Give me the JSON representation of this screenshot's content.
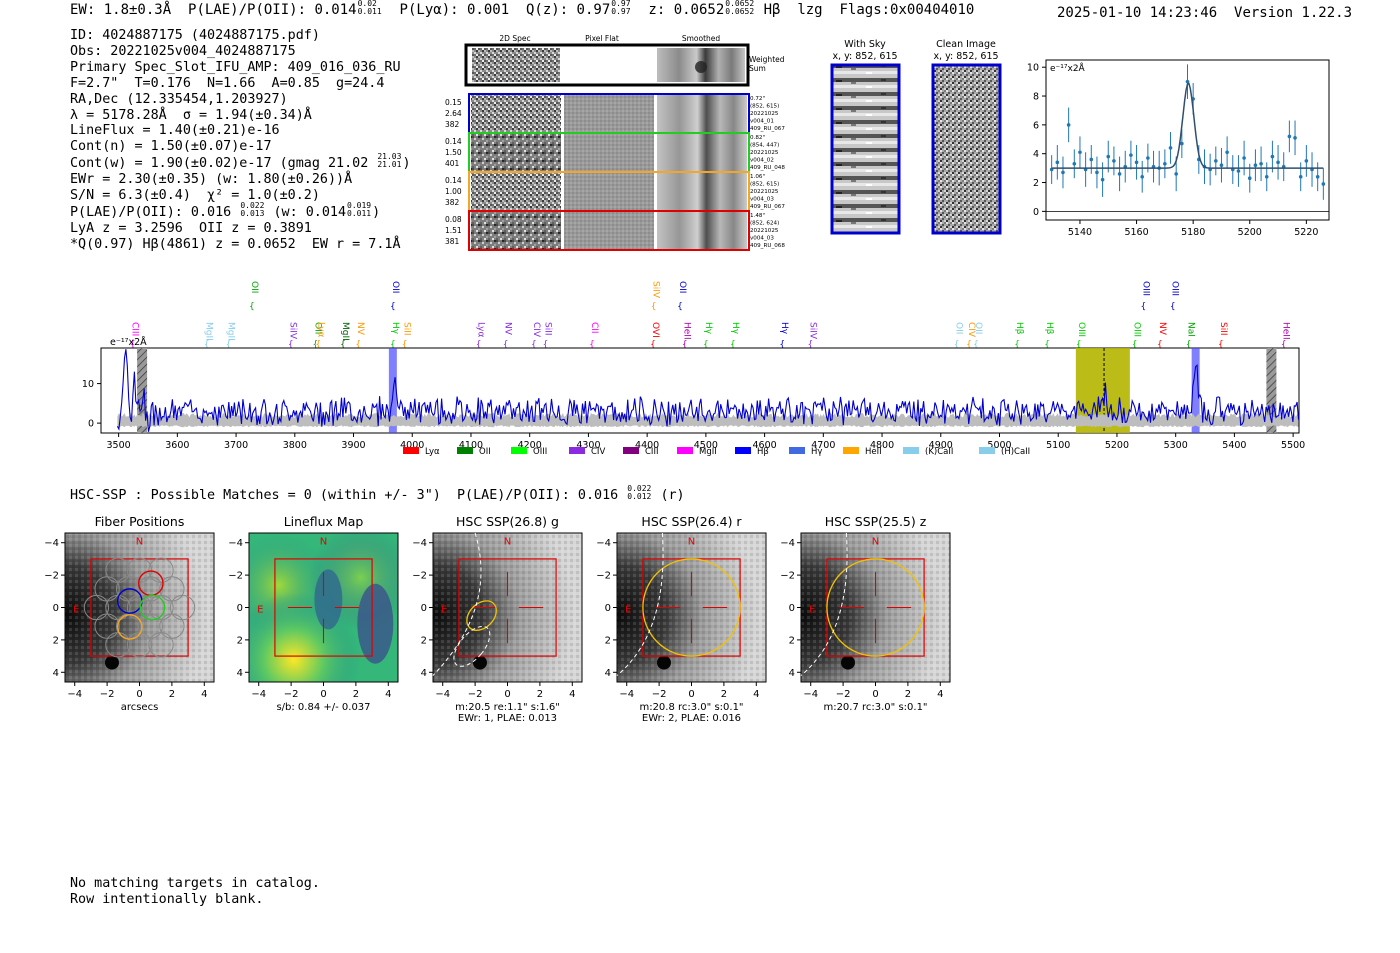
{
  "header": {
    "ew": "EW: 1.8±0.3Å",
    "plae_label": "P(LAE)/P(OII): 0.014",
    "plae_hi": "0.02",
    "plae_lo": "0.011",
    "plya": "P(Lyα): 0.001",
    "q_label": "Q(z): 0.97",
    "q_hi": "0.97",
    "q_lo": "0.97",
    "z_label": "z: 0.0652",
    "z_hi": "0.0652",
    "z_lo": "0.0652",
    "line": "Hβ",
    "lzg": "lzg",
    "flags": "Flags:0x00404010",
    "timestamp": "2025-01-10 14:23:46",
    "version": "Version 1.22.3"
  },
  "info": {
    "id": "ID: 4024887175 (4024887175.pdf)",
    "obs": "Obs: 20221025v004_4024887175",
    "primary": "Primary Spec_Slot_IFU_AMP: 409_016_036_RU",
    "fparams": "F=2.7\"  T=0.176  N=1.66  A=0.85  g=24.4",
    "radec": "RA,Dec (12.335454,1.203927)",
    "lambda": "λ = 5178.28Å  σ = 1.94(±0.34)Å",
    "lineflux": "LineFlux = 1.40(±0.21)e-16",
    "contn": "Cont(n) = 1.50(±0.07)e-17",
    "contw": "Cont(w) = 1.90(±0.02)e-17 (gmag 21.02",
    "gmag_hi": "21.03",
    "gmag_lo": "21.01",
    "contw_end": ")",
    "ewr": "EWr = 2.30(±0.35) (w: 1.80(±0.26))Å",
    "sn": "S/N = 6.3(±0.4)  χ² = 1.0(±0.2)",
    "plae": "P(LAE)/P(OII): 0.016",
    "plae_hi": "0.022",
    "plae_lo": "0.013",
    "plae_w": "(w: 0.014",
    "plae_w_hi": "0.019",
    "plae_w_lo": "0.011",
    "plae_w_end": ")",
    "lya": "LyA z = 3.2596  OII z = 0.3891",
    "best": "*Q(0.97) Hβ(4861) z = 0.0652  EW r = 7.1Å"
  },
  "spec2d": {
    "col_titles": [
      "2D Spec",
      "Pixel Flat",
      "Smoothed"
    ],
    "weighted": [
      "Weighted",
      "Sum"
    ],
    "rows": [
      {
        "vals": [
          "0.15",
          "2.64",
          "382"
        ],
        "meta": [
          "0.72\"",
          "(852, 615)",
          "20221025",
          "v004_01",
          "409_RU_067"
        ],
        "color": "#0000cc"
      },
      {
        "vals": [
          "0.14",
          "1.50",
          "401"
        ],
        "meta": [
          "0.82\"",
          "(854, 447)",
          "20221025",
          "v004_02",
          "409_RU_048"
        ],
        "color": "#22cc22"
      },
      {
        "vals": [
          "0.14",
          "1.00",
          "382"
        ],
        "meta": [
          "1.06\"",
          "(852, 615)",
          "20221025",
          "v004_03",
          "409_RU_067"
        ],
        "color": "#f5a623"
      },
      {
        "vals": [
          "0.08",
          "1.51",
          "381"
        ],
        "meta": [
          "1.48\"",
          "(852, 624)",
          "20221025",
          "v004_03",
          "409_RU_068"
        ],
        "color": "#e00000"
      }
    ]
  },
  "cutouts": {
    "with_sky": "With Sky",
    "with_sky_xy": "x, y: 852, 615",
    "clean": "Clean Image",
    "clean_xy": "x, y: 852, 615"
  },
  "zoom_chart": {
    "type": "scatter",
    "ylabel": "e⁻¹⁷x2Å",
    "xlim": [
      5128,
      5228
    ],
    "ylim": [
      -0.6,
      10.5
    ],
    "xticks": [
      5140,
      5160,
      5180,
      5200,
      5220
    ],
    "yticks": [
      0,
      2,
      4,
      6,
      8,
      10
    ],
    "continuum": 3.0,
    "peak_x": 5178.3,
    "peak_amp": 5.9,
    "sigma": 1.94,
    "x": [
      5130,
      5132,
      5134,
      5136,
      5138,
      5140,
      5142,
      5144,
      5146,
      5148,
      5150,
      5152,
      5154,
      5156,
      5158,
      5160,
      5162,
      5164,
      5166,
      5168,
      5170,
      5172,
      5174,
      5176,
      5178,
      5180,
      5182,
      5184,
      5186,
      5188,
      5190,
      5192,
      5194,
      5196,
      5198,
      5200,
      5202,
      5204,
      5206,
      5208,
      5210,
      5212,
      5214,
      5216,
      5218,
      5220,
      5222,
      5224,
      5226
    ],
    "y": [
      2.9,
      3.4,
      2.7,
      6.0,
      3.3,
      4.1,
      2.9,
      3.6,
      2.7,
      2.2,
      3.8,
      3.5,
      2.6,
      3.1,
      3.9,
      3.4,
      2.4,
      3.7,
      3.1,
      3.0,
      3.3,
      4.4,
      2.6,
      4.7,
      9.0,
      7.8,
      3.6,
      3.1,
      2.9,
      3.5,
      3.2,
      4.1,
      2.9,
      2.8,
      3.7,
      2.3,
      3.2,
      3.3,
      2.4,
      3.8,
      3.4,
      3.1,
      5.2,
      5.1,
      2.4,
      3.5,
      2.9,
      2.4,
      1.9
    ],
    "err": [
      1.0,
      1.2,
      1.1,
      1.2,
      1.0,
      1.1,
      1.2,
      1.0,
      1.1,
      1.2,
      1.1,
      1.0,
      1.2,
      1.1,
      1.0,
      1.2,
      1.1,
      1.0,
      1.1,
      1.2,
      1.0,
      1.1,
      1.2,
      1.0,
      1.2,
      1.1,
      1.0,
      1.2,
      1.1,
      1.0,
      1.2,
      1.1,
      1.0,
      1.1,
      1.2,
      1.0,
      1.1,
      1.2,
      1.0,
      1.1,
      1.2,
      1.0,
      1.1,
      1.2,
      1.0,
      1.1,
      1.2,
      1.0,
      1.1
    ]
  },
  "full_spectrum": {
    "type": "line",
    "ylabel": "e⁻¹⁷x2Å",
    "xlim": [
      3470,
      5510
    ],
    "ylim": [
      -2.5,
      19
    ],
    "xticks": [
      3500,
      3600,
      3700,
      3800,
      3900,
      4000,
      4100,
      4200,
      4300,
      4400,
      4500,
      4600,
      4700,
      4800,
      4900,
      5000,
      5100,
      5200,
      5300,
      5400,
      5500
    ],
    "yticks": [
      0,
      10
    ],
    "baseline": 3.0,
    "peaks": [
      {
        "x": 3512,
        "a": 14
      },
      {
        "x": 3527,
        "a": 7
      },
      {
        "x": 3971,
        "a": 8
      },
      {
        "x": 5178,
        "a": 5
      },
      {
        "x": 5334,
        "a": 12
      }
    ],
    "highlight_band": [
      5130,
      5222
    ],
    "dashed_x": 5178,
    "blue_bands": [
      3967,
      5334
    ],
    "hatched_bands": [
      3540,
      5463
    ],
    "top_labels": [
      {
        "t": "OII",
        "x": 3727,
        "c": "#00aa00"
      },
      {
        "t": "OII",
        "x": 3967,
        "c": "#0000cc"
      },
      {
        "t": "SiIV",
        "x": 4411,
        "c": "#ff9900"
      },
      {
        "t": "OII",
        "x": 4456,
        "c": "#0000cc"
      },
      {
        "t": "OIII",
        "x": 5245,
        "c": "#0000cc"
      },
      {
        "t": "OIII",
        "x": 5295,
        "c": "#0000cc"
      }
    ],
    "lines": [
      {
        "t": "CIII",
        "x": 3524,
        "c": "#ff00ff"
      },
      {
        "t": "MgII",
        "x": 3650,
        "c": "#87ceeb"
      },
      {
        "t": "MgII",
        "x": 3687,
        "c": "#87ceeb"
      },
      {
        "t": "SiIV",
        "x": 3793,
        "c": "#8a2be2"
      },
      {
        "t": "OII",
        "x": 3835,
        "c": "#00aa00"
      },
      {
        "t": "Lyα",
        "x": 3840,
        "c": "#ff9900"
      },
      {
        "t": "MgII",
        "x": 3882,
        "c": "#006400"
      },
      {
        "t": "NV",
        "x": 3908,
        "c": "#ff9900"
      },
      {
        "t": "Hγ",
        "x": 3967,
        "c": "#00cc00"
      },
      {
        "t": "SiII",
        "x": 3987,
        "c": "#ff9900"
      },
      {
        "t": "Lyα",
        "x": 4113,
        "c": "#8a2be2"
      },
      {
        "t": "NV",
        "x": 4159,
        "c": "#8a2be2"
      },
      {
        "t": "CIV",
        "x": 4207,
        "c": "#8a2be2"
      },
      {
        "t": "SiII",
        "x": 4227,
        "c": "#8a2be2"
      },
      {
        "t": "CII",
        "x": 4306,
        "c": "#ff00ff"
      },
      {
        "t": "OVI",
        "x": 4410,
        "c": "#ff0000"
      },
      {
        "t": "HeII",
        "x": 4464,
        "c": "#aa00aa"
      },
      {
        "t": "Hγ",
        "x": 4500,
        "c": "#00cc00"
      },
      {
        "t": "Hγ",
        "x": 4546,
        "c": "#00cc00"
      },
      {
        "t": "Hγ",
        "x": 4630,
        "c": "#0000cc"
      },
      {
        "t": "SiIV",
        "x": 4678,
        "c": "#8a2be2"
      },
      {
        "t": "OII",
        "x": 4927,
        "c": "#87ceeb"
      },
      {
        "t": "CIV",
        "x": 4948,
        "c": "#ff9900"
      },
      {
        "t": "OII",
        "x": 4960,
        "c": "#87ceeb"
      },
      {
        "t": "Hβ",
        "x": 5030,
        "c": "#00cc00"
      },
      {
        "t": "Hβ",
        "x": 5081,
        "c": "#00cc00"
      },
      {
        "t": "OIII",
        "x": 5135,
        "c": "#00cc00"
      },
      {
        "t": "OIII",
        "x": 5230,
        "c": "#00cc00"
      },
      {
        "t": "NV",
        "x": 5273,
        "c": "#ff0000"
      },
      {
        "t": "NaI",
        "x": 5322,
        "c": "#00aa00"
      },
      {
        "t": "SiII",
        "x": 5377,
        "c": "#ff0000"
      },
      {
        "t": "HeII",
        "x": 5484,
        "c": "#aa00aa"
      }
    ],
    "legend": [
      {
        "t": "Lyα",
        "c": "#ff0000"
      },
      {
        "t": "OII",
        "c": "#008000"
      },
      {
        "t": "OIII",
        "c": "#00ff00"
      },
      {
        "t": "CIV",
        "c": "#8a2be2"
      },
      {
        "t": "CIII",
        "c": "#800080"
      },
      {
        "t": "MgII",
        "c": "#ff00ff"
      },
      {
        "t": "Hβ",
        "c": "#0000ff"
      },
      {
        "t": "Hγ",
        "c": "#4169e1"
      },
      {
        "t": "HeII",
        "c": "#ffa500"
      },
      {
        "t": "(K)CaII",
        "c": "#87ceeb"
      },
      {
        "t": "(H)CaII",
        "c": "#87ceeb"
      }
    ]
  },
  "hsc": {
    "title": "HSC-SSP : Possible Matches = 0 (within +/- 3\")  P(LAE)/P(OII): 0.016",
    "hi": "0.022",
    "lo": "0.012",
    "band": "(r)",
    "panels": [
      {
        "title": "Fiber Positions",
        "footer": [
          "arcsecs"
        ],
        "kind": "fibers"
      },
      {
        "title": "Lineflux Map",
        "footer": [
          "s/b: 0.84 +/- 0.037"
        ],
        "kind": "lineflux"
      },
      {
        "title": "HSC SSP(26.8) g",
        "footer": [
          "m:20.5  re:1.1\"  s:1.6\"",
          "EWr: 1, PLAE: 0.013"
        ],
        "kind": "ellipse"
      },
      {
        "title": "HSC SSP(26.4) r",
        "footer": [
          "m:20.8 rc:3.0\"  s:0.1\"",
          "EWr: 2, PLAE: 0.016"
        ],
        "kind": "circle"
      },
      {
        "title": "HSC SSP(25.5) z",
        "footer": [
          "m:20.7 rc:3.0\"  s:0.1\""
        ],
        "kind": "circle"
      }
    ],
    "ticks": [
      "−4",
      "−2",
      "0",
      "2",
      "4"
    ],
    "north": "N",
    "east": "E"
  },
  "footer": {
    "line1": "No matching targets in catalog.",
    "line2": "Row intentionally blank."
  }
}
